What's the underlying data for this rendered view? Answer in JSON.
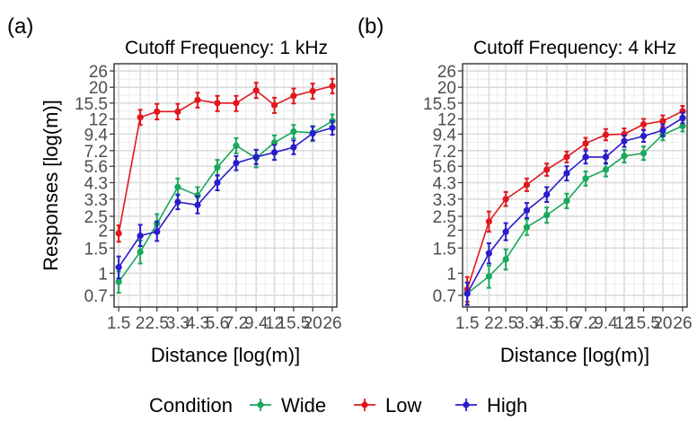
{
  "legend": {
    "title": "Condition",
    "items": [
      {
        "label": "Wide",
        "color": "#1aa85b"
      },
      {
        "label": "Low",
        "color": "#e0181e"
      },
      {
        "label": "High",
        "color": "#2a1ccc"
      }
    ]
  },
  "chart_data": [
    {
      "type": "line",
      "panel_label": "(a)",
      "title": "Cutoff Frequency: 1 kHz",
      "xlabel": "Distance [log(m)]",
      "ylabel": "Responses [log(m)]",
      "x_scale": "log",
      "y_scale": "log",
      "x": [
        1.5,
        2,
        2.5,
        3.3,
        4.3,
        5.6,
        7.2,
        9.4,
        12,
        15.5,
        20,
        26
      ],
      "x_tick_labels": [
        "1.5",
        "2",
        "2.5",
        "3.3",
        "4.3",
        "5.6",
        "7.2",
        "9.4",
        "12",
        "15.5",
        "20",
        "26"
      ],
      "y_ticks": [
        0.7,
        1,
        1.5,
        2,
        2.5,
        3.3,
        4.3,
        5.6,
        7.2,
        9.4,
        12,
        15.5,
        20,
        26
      ],
      "y_tick_labels": [
        "0.7",
        "1",
        "1.5",
        "2",
        "2.5",
        "3.3",
        "4.3",
        "5.6",
        "7.2",
        "9.4",
        "12",
        "15.5",
        "20",
        "26"
      ],
      "xlim": [
        1.41,
        27.6
      ],
      "ylim": [
        0.58,
        29.2
      ],
      "grid": true,
      "series": [
        {
          "name": "Wide",
          "color": "#1aa85b",
          "values": [
            0.87,
            1.41,
            2.22,
            4.0,
            3.5,
            5.5,
            7.8,
            6.4,
            8.2,
            9.8,
            9.6,
            11.6
          ],
          "err_low": [
            0.73,
            1.17,
            1.95,
            3.5,
            3.05,
            4.8,
            6.9,
            5.5,
            7.2,
            8.8,
            8.4,
            10.4
          ],
          "err_high": [
            1.03,
            1.69,
            2.59,
            4.6,
            4.0,
            6.2,
            8.8,
            7.3,
            9.2,
            10.9,
            10.7,
            12.9
          ]
        },
        {
          "name": "Low",
          "color": "#e0181e",
          "values": [
            1.9,
            12.3,
            13.5,
            13.5,
            16.3,
            15.5,
            15.5,
            19.0,
            15.0,
            17.4,
            18.8,
            20.4
          ],
          "err_low": [
            1.66,
            10.9,
            11.9,
            11.9,
            14.4,
            13.6,
            13.6,
            16.8,
            13.2,
            15.4,
            16.6,
            18.1
          ],
          "err_high": [
            2.16,
            13.9,
            15.3,
            15.3,
            18.3,
            17.4,
            17.4,
            21.5,
            16.9,
            19.6,
            21.2,
            22.9
          ]
        },
        {
          "name": "High",
          "color": "#2a1ccc",
          "values": [
            1.1,
            1.83,
            1.95,
            3.15,
            3.0,
            4.3,
            5.9,
            6.5,
            7.0,
            7.6,
            9.5,
            10.4
          ],
          "err_low": [
            0.92,
            1.55,
            1.68,
            2.8,
            2.62,
            3.8,
            5.25,
            5.8,
            6.2,
            6.8,
            8.5,
            9.3
          ],
          "err_high": [
            1.31,
            2.18,
            2.3,
            3.55,
            3.45,
            4.85,
            6.6,
            7.3,
            7.9,
            8.5,
            10.6,
            11.6
          ]
        }
      ]
    },
    {
      "type": "line",
      "panel_label": "(b)",
      "title": "Cutoff Frequency: 4 kHz",
      "xlabel": "Distance [log(m)]",
      "ylabel": "",
      "x_scale": "log",
      "y_scale": "log",
      "x": [
        1.5,
        2,
        2.5,
        3.3,
        4.3,
        5.6,
        7.2,
        9.4,
        12,
        15.5,
        20,
        26
      ],
      "x_tick_labels": [
        "1.5",
        "2",
        "2.5",
        "3.3",
        "4.3",
        "5.6",
        "7.2",
        "9.4",
        "12",
        "15.5",
        "20",
        "26"
      ],
      "y_ticks": [
        0.7,
        1,
        1.5,
        2,
        2.5,
        3.3,
        4.3,
        5.6,
        7.2,
        9.4,
        12,
        15.5,
        20,
        26
      ],
      "y_tick_labels": [
        "0.7",
        "1",
        "1.5",
        "2",
        "2.5",
        "3.3",
        "4.3",
        "5.6",
        "7.2",
        "9.4",
        "12",
        "15.5",
        "20",
        "26"
      ],
      "xlim": [
        1.41,
        27.6
      ],
      "ylim": [
        0.58,
        29.2
      ],
      "grid": true,
      "series": [
        {
          "name": "Wide",
          "color": "#1aa85b",
          "values": [
            0.72,
            0.95,
            1.25,
            2.1,
            2.55,
            3.2,
            4.6,
            5.3,
            6.6,
            6.9,
            9.3,
            10.7
          ],
          "err_low": [
            0.6,
            0.79,
            1.06,
            1.85,
            2.25,
            2.85,
            4.1,
            4.75,
            5.95,
            6.2,
            8.5,
            9.8
          ],
          "err_high": [
            0.86,
            1.13,
            1.47,
            2.38,
            2.88,
            3.6,
            5.15,
            5.9,
            7.3,
            7.7,
            10.2,
            11.7
          ]
        },
        {
          "name": "Low",
          "color": "#e0181e",
          "values": [
            0.77,
            2.3,
            3.3,
            4.15,
            5.3,
            6.5,
            8.1,
            9.3,
            9.4,
            11.0,
            11.6,
            13.6
          ],
          "err_low": [
            0.63,
            1.95,
            2.95,
            3.75,
            4.8,
            5.95,
            7.4,
            8.5,
            8.6,
            10.1,
            10.6,
            12.5
          ],
          "err_high": [
            0.94,
            2.7,
            3.7,
            4.6,
            5.85,
            7.1,
            8.85,
            10.2,
            10.3,
            12.0,
            12.7,
            14.8
          ]
        },
        {
          "name": "High",
          "color": "#2a1ccc",
          "values": [
            0.72,
            1.38,
            1.95,
            2.75,
            3.55,
            5.0,
            6.5,
            6.5,
            8.4,
            9.1,
            10.0,
            12.2
          ],
          "err_low": [
            0.6,
            1.17,
            1.7,
            2.43,
            3.15,
            4.45,
            5.85,
            5.85,
            7.65,
            8.3,
            9.1,
            11.2
          ],
          "err_high": [
            0.86,
            1.62,
            2.24,
            3.1,
            4.0,
            5.6,
            7.2,
            7.2,
            9.2,
            10.0,
            11.0,
            13.3
          ]
        }
      ]
    }
  ]
}
